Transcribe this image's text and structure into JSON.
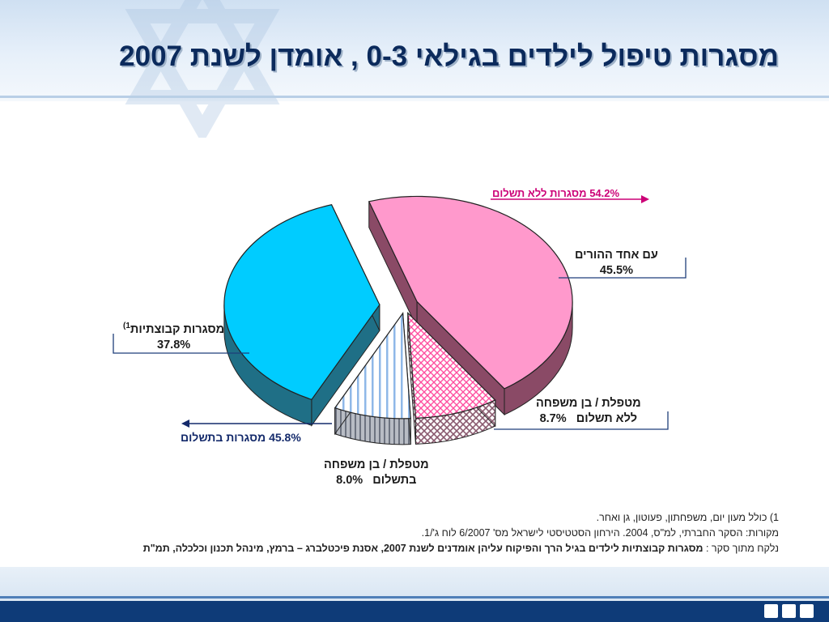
{
  "title": "מסגרות טיפול לילדים בגילאי 0-3 , אומדן לשנת 2007",
  "chart_data": {
    "type": "pie",
    "slices": [
      {
        "label": "עם אחד ההורים",
        "value": 45.5,
        "value_text": "45.5%",
        "color": "#ff99cc",
        "side_color": "#8a4a66",
        "pattern": "solid"
      },
      {
        "label": "מטפלת / בן משפחה ללא תשלום",
        "value": 8.7,
        "value_text": "8.7%",
        "color": "#ff66aa",
        "side_color": "#8a5a6f",
        "pattern": "crosshatch"
      },
      {
        "label": "מטפלת / בן משפחה בתשלום",
        "value": 8.0,
        "value_text": "8.0%",
        "color": "#99ccff",
        "side_color": "#8a8f99",
        "pattern": "vertical-stripes"
      },
      {
        "label": "מסגרות קבוצתיות",
        "value": 37.8,
        "value_text": "37.8%",
        "color": "#00ccff",
        "side_color": "#1f6f86",
        "pattern": "solid",
        "footnote_mark": "1)"
      }
    ],
    "groups": [
      {
        "label": "מסגרות ללא תשלום",
        "value": 54.2,
        "value_text": "54.2%",
        "color": "#cc0077"
      },
      {
        "label": "מסגרות בתשלום",
        "value": 45.8,
        "value_text": "45.8%",
        "color": "#142a6b"
      }
    ]
  },
  "labels": {
    "parent_line1": "עם אחד ההורים",
    "parent_pct": "45.5%",
    "unpaid_line1": "מטפלת / בן משפחה",
    "unpaid_line2": "ללא תשלום",
    "unpaid_pct": "8.7%",
    "paid_line1": "מטפלת / בן משפחה",
    "paid_line2": "בתשלום",
    "paid_pct": "8.0%",
    "group_line1": "מסגרות קבוצתיות",
    "group_sup": "1)",
    "group_pct": "37.8%",
    "unpaid_total": "54.2% מסגרות ללא תשלום",
    "paid_total": "45.8% מסגרות בתשלום"
  },
  "notes": {
    "line1": "1) כולל מעון יום, משפחתון, פעוטון, גן ואחר.",
    "line2": "מקורות: הסקר החברתי, למ\"ס, 2004.  הירחון הסטטיסטי לישראל מס' 6/2007 לוח ג'/1.",
    "line3_prefix": "נלקח מתוך סקר : ",
    "line3_bold": "מסגרות קבוצתיות לילדים בגיל הרך והפיקוח עליהן אומדנים לשנת 2007,  אסנת פיכטלברג – ברמץ, מינהל תכנון וכלכלה, תמ\"ת"
  },
  "colors": {
    "title": "#0b2a5c",
    "header_bg": "#dbe7f4",
    "footer_bar": "#0e3b78"
  }
}
